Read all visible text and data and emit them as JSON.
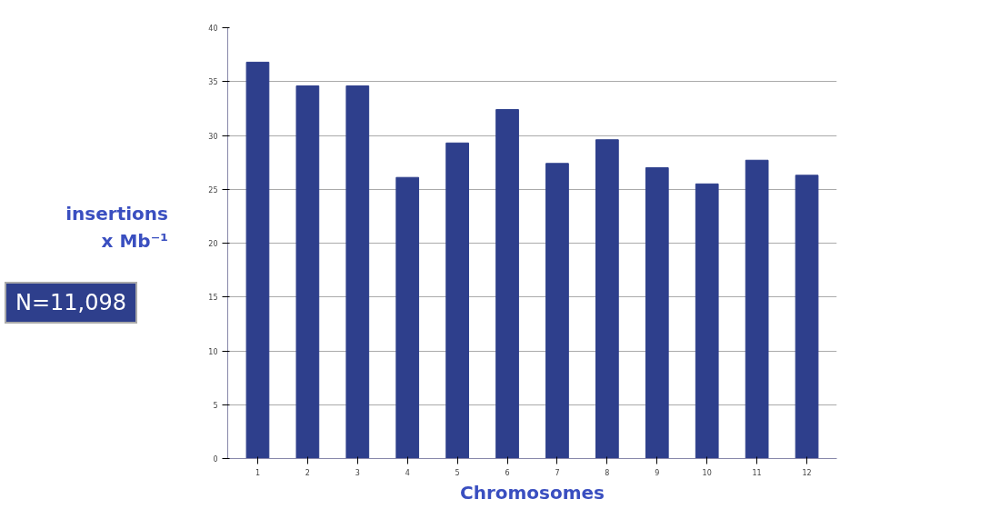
{
  "chart_data": {
    "type": "bar",
    "xlabel": "Chromosomes",
    "ylabel": "insertions x Mb⁻¹",
    "categories": [
      "1",
      "2",
      "3",
      "4",
      "5",
      "6",
      "7",
      "8",
      "9",
      "10",
      "11",
      "12"
    ],
    "values": [
      36.8,
      34.6,
      34.6,
      26.1,
      29.3,
      32.4,
      27.4,
      29.6,
      27.0,
      25.5,
      27.7,
      26.3
    ],
    "color": "#2e3f8c",
    "ylim": [
      0,
      40
    ],
    "yticks": [
      0,
      5,
      10,
      15,
      20,
      25,
      30,
      35,
      40
    ],
    "grid": "y",
    "annotations": [
      "N=11,098"
    ]
  }
}
